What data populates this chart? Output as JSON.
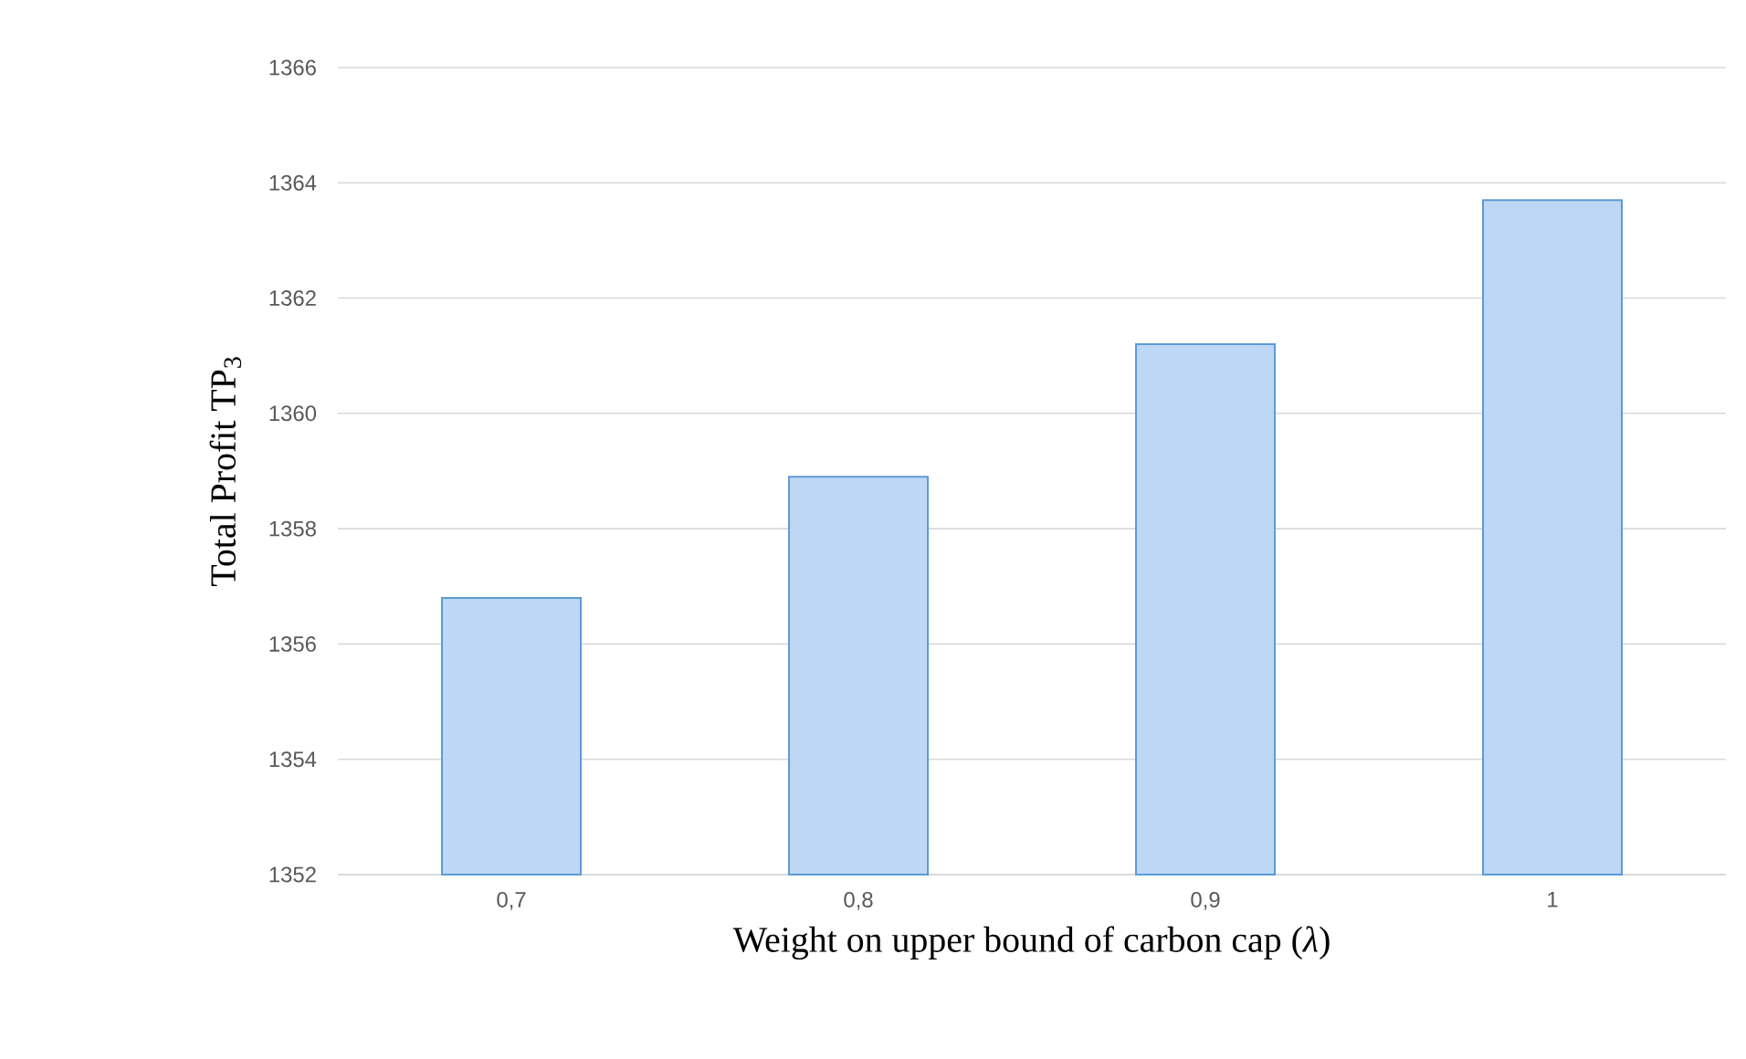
{
  "chart_data": {
    "type": "bar",
    "xlabel": "Weight on upper bound of carbon cap (*λ*)",
    "ylabel": "Total Profit TP$_{3}$",
    "categories": [
      "0,7",
      "0,8",
      "0,9",
      "1"
    ],
    "values": [
      1356.8,
      1358.9,
      1361.2,
      1363.7
    ],
    "color": "#bdd7f5",
    "ylim": [
      1352,
      1366
    ],
    "yticks": [
      1352,
      1354,
      1356,
      1358,
      1360,
      1362,
      1364,
      1366
    ],
    "grid": "y"
  }
}
